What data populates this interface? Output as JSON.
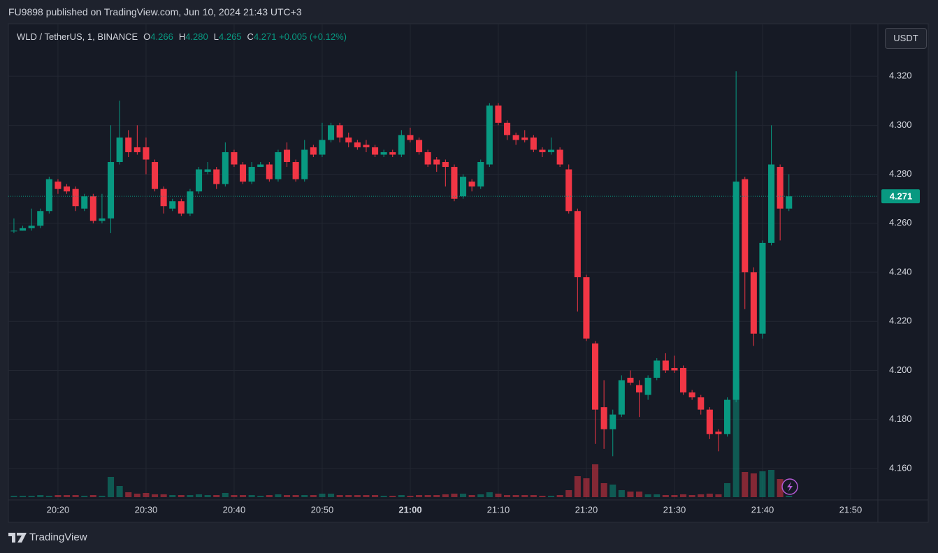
{
  "header": "FU9898 published on TradingView.com, Jun 10, 2024 21:43 UTC+3",
  "footer": "TradingView",
  "chart_data": {
    "type": "candlestick",
    "symbol": "WLD / TetherUS, 1, BINANCE",
    "legend": [
      {
        "label": "O",
        "value": "4.266"
      },
      {
        "label": "H",
        "value": "4.280"
      },
      {
        "label": "L",
        "value": "4.265"
      },
      {
        "label": "C",
        "value": "4.271"
      }
    ],
    "change": "+0.005 (+0.12%)",
    "currency": "USDT",
    "up_color": "#089981",
    "down_color": "#f23645",
    "grid": true,
    "x": [
      1215,
      1216,
      1217,
      1218,
      1219,
      1220,
      1221,
      1222,
      1223,
      1224,
      1225,
      1226,
      1227,
      1228,
      1229,
      1230,
      1231,
      1232,
      1233,
      1234,
      1235,
      1236,
      1237,
      1238,
      1239,
      1240,
      1241,
      1242,
      1243,
      1244,
      1245,
      1246,
      1247,
      1248,
      1249,
      1250,
      1251,
      1252,
      1253,
      1254,
      1255,
      1256,
      1257,
      1258,
      1259,
      1260,
      1261,
      1262,
      1263,
      1264,
      1265,
      1266,
      1267,
      1268,
      1269,
      1270,
      1271,
      1272,
      1273,
      1274,
      1275,
      1276,
      1277,
      1278,
      1279,
      1280,
      1281,
      1282,
      1283,
      1284,
      1285,
      1286,
      1287,
      1288,
      1289,
      1290,
      1291,
      1292,
      1293,
      1294,
      1295,
      1296,
      1297,
      1298,
      1299,
      1300,
      1301,
      1302,
      1303
    ],
    "open": [
      4.257,
      4.257,
      4.258,
      4.259,
      4.265,
      4.277,
      4.275,
      4.274,
      4.266,
      4.271,
      4.261,
      4.262,
      4.285,
      4.295,
      4.291,
      4.291,
      4.285,
      4.274,
      4.266,
      4.269,
      4.264,
      4.273,
      4.281,
      4.282,
      4.276,
      4.289,
      4.284,
      4.277,
      4.283,
      4.284,
      4.278,
      4.29,
      4.285,
      4.278,
      4.291,
      4.288,
      4.294,
      4.3,
      4.295,
      4.293,
      4.292,
      4.291,
      4.288,
      4.289,
      4.288,
      4.296,
      4.294,
      4.289,
      4.286,
      4.285,
      4.283,
      4.271,
      4.277,
      4.275,
      4.284,
      4.308,
      4.301,
      4.296,
      4.295,
      4.295,
      4.29,
      4.289,
      4.29,
      4.282,
      4.265,
      4.238,
      4.211,
      4.185,
      4.176,
      4.182,
      4.197,
      4.194,
      4.19,
      4.197,
      4.204,
      4.201,
      4.201,
      4.191,
      4.189,
      4.184,
      4.175,
      4.174,
      4.188,
      4.278,
      4.24,
      4.215,
      4.252,
      4.283,
      4.266
    ],
    "high": [
      4.262,
      4.259,
      4.266,
      4.266,
      4.279,
      4.278,
      4.276,
      4.275,
      4.272,
      4.272,
      4.272,
      4.3,
      4.31,
      4.298,
      4.3,
      4.295,
      4.286,
      4.275,
      4.27,
      4.27,
      4.274,
      4.283,
      4.285,
      4.283,
      4.293,
      4.29,
      4.285,
      4.285,
      4.285,
      4.285,
      4.29,
      4.293,
      4.286,
      4.294,
      4.292,
      4.301,
      4.301,
      4.301,
      4.297,
      4.294,
      4.294,
      4.292,
      4.29,
      4.29,
      4.298,
      4.299,
      4.295,
      4.29,
      4.287,
      4.286,
      4.284,
      4.28,
      4.278,
      4.286,
      4.309,
      4.309,
      4.302,
      4.297,
      4.298,
      4.296,
      4.291,
      4.295,
      4.291,
      4.284,
      4.266,
      4.239,
      4.212,
      4.196,
      4.184,
      4.198,
      4.2,
      4.196,
      4.198,
      4.205,
      4.207,
      4.206,
      4.202,
      4.192,
      4.19,
      4.185,
      4.176,
      4.189,
      4.322,
      4.279,
      4.242,
      4.253,
      4.3,
      4.284,
      4.28
    ],
    "low": [
      4.256,
      4.257,
      4.257,
      4.258,
      4.264,
      4.272,
      4.272,
      4.265,
      4.265,
      4.26,
      4.26,
      4.256,
      4.284,
      4.287,
      4.288,
      4.28,
      4.273,
      4.264,
      4.265,
      4.263,
      4.263,
      4.272,
      4.28,
      4.274,
      4.275,
      4.283,
      4.276,
      4.276,
      4.283,
      4.277,
      4.277,
      4.283,
      4.277,
      4.277,
      4.287,
      4.287,
      4.293,
      4.293,
      4.291,
      4.29,
      4.289,
      4.287,
      4.287,
      4.287,
      4.287,
      4.293,
      4.288,
      4.283,
      4.281,
      4.275,
      4.269,
      4.27,
      4.273,
      4.274,
      4.283,
      4.3,
      4.294,
      4.292,
      4.293,
      4.289,
      4.287,
      4.288,
      4.283,
      4.264,
      4.224,
      4.212,
      4.17,
      4.168,
      4.165,
      4.181,
      4.194,
      4.181,
      4.188,
      4.196,
      4.199,
      4.199,
      4.19,
      4.188,
      4.182,
      4.172,
      4.167,
      4.173,
      4.187,
      4.225,
      4.21,
      4.213,
      4.251,
      4.253,
      4.265
    ],
    "close": [
      4.257,
      4.258,
      4.259,
      4.265,
      4.278,
      4.274,
      4.273,
      4.267,
      4.271,
      4.261,
      4.262,
      4.285,
      4.295,
      4.289,
      4.289,
      4.286,
      4.274,
      4.267,
      4.269,
      4.264,
      4.273,
      4.282,
      4.282,
      4.276,
      4.289,
      4.284,
      4.277,
      4.283,
      4.284,
      4.278,
      4.289,
      4.285,
      4.278,
      4.29,
      4.288,
      4.294,
      4.3,
      4.295,
      4.293,
      4.291,
      4.291,
      4.288,
      4.289,
      4.288,
      4.296,
      4.294,
      4.289,
      4.284,
      4.284,
      4.283,
      4.27,
      4.279,
      4.275,
      4.285,
      4.308,
      4.301,
      4.296,
      4.294,
      4.294,
      4.29,
      4.289,
      4.29,
      4.284,
      4.265,
      4.238,
      4.213,
      4.184,
      4.176,
      4.182,
      4.196,
      4.195,
      4.191,
      4.197,
      4.204,
      4.2,
      4.2,
      4.191,
      4.189,
      4.184,
      4.174,
      4.174,
      4.188,
      4.277,
      4.24,
      4.215,
      4.252,
      4.284,
      4.266,
      4.271
    ],
    "volume": [
      2,
      2,
      2,
      3,
      2,
      3,
      3,
      3,
      2,
      3,
      2,
      29,
      16,
      7,
      5,
      6,
      4,
      4,
      3,
      3,
      3,
      4,
      3,
      3,
      6,
      3,
      3,
      3,
      2,
      3,
      4,
      3,
      3,
      3,
      3,
      5,
      5,
      3,
      3,
      3,
      3,
      3,
      2,
      2,
      3,
      2,
      3,
      3,
      3,
      4,
      5,
      5,
      3,
      4,
      7,
      5,
      3,
      3,
      3,
      3,
      2,
      2,
      3,
      10,
      30,
      27,
      47,
      20,
      18,
      10,
      8,
      8,
      4,
      4,
      3,
      3,
      4,
      3,
      4,
      5,
      4,
      20,
      170,
      36,
      34,
      37,
      39,
      26,
      2
    ],
    "xlim": [
      1214.37,
      1313.1
    ],
    "xticks": [
      {
        "value": 1220,
        "label": "20:20"
      },
      {
        "value": 1230,
        "label": "20:30"
      },
      {
        "value": 1240,
        "label": "20:40"
      },
      {
        "value": 1250,
        "label": "20:50"
      },
      {
        "value": 1260,
        "label": "21:00"
      },
      {
        "value": 1270,
        "label": "21:10"
      },
      {
        "value": 1280,
        "label": "21:20"
      },
      {
        "value": 1290,
        "label": "21:30"
      },
      {
        "value": 1300,
        "label": "21:40"
      },
      {
        "value": 1310,
        "label": "21:50"
      }
    ],
    "ylim": [
      4.1483,
      4.3414
    ],
    "yticks": [
      {
        "value": 4.16,
        "label": "4.160"
      },
      {
        "value": 4.18,
        "label": "4.180"
      },
      {
        "value": 4.2,
        "label": "4.200"
      },
      {
        "value": 4.22,
        "label": "4.220"
      },
      {
        "value": 4.24,
        "label": "4.240"
      },
      {
        "value": 4.26,
        "label": "4.260"
      },
      {
        "value": 4.28,
        "label": "4.280"
      },
      {
        "value": 4.3,
        "label": "4.300"
      },
      {
        "value": 4.32,
        "label": "4.320"
      }
    ]
  }
}
